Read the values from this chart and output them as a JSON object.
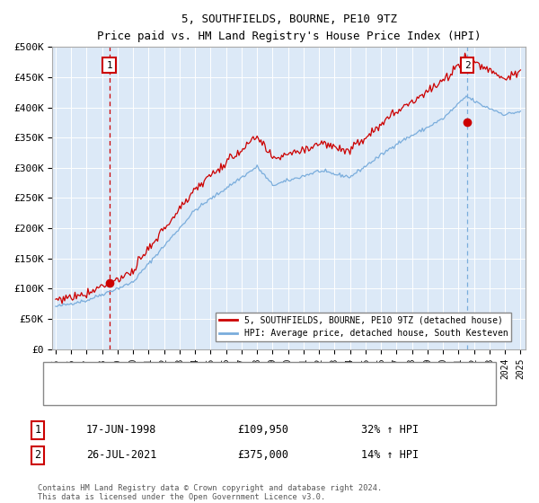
{
  "title": "5, SOUTHFIELDS, BOURNE, PE10 9TZ",
  "subtitle": "Price paid vs. HM Land Registry's House Price Index (HPI)",
  "bg_color": "#dce9f7",
  "line1_color": "#cc0000",
  "line2_color": "#7aaddc",
  "vline1_color": "#cc0000",
  "vline2_color": "#7aaddc",
  "ylim": [
    0,
    500000
  ],
  "yticks": [
    0,
    50000,
    100000,
    150000,
    200000,
    250000,
    300000,
    350000,
    400000,
    450000,
    500000
  ],
  "ytick_labels": [
    "£0",
    "£50K",
    "£100K",
    "£150K",
    "£200K",
    "£250K",
    "£300K",
    "£350K",
    "£400K",
    "£450K",
    "£500K"
  ],
  "xmin_year": 1995,
  "xmax_year": 2025,
  "xticks": [
    1995,
    1996,
    1997,
    1998,
    1999,
    2000,
    2001,
    2002,
    2003,
    2004,
    2005,
    2006,
    2007,
    2008,
    2009,
    2010,
    2011,
    2012,
    2013,
    2014,
    2015,
    2016,
    2017,
    2018,
    2019,
    2020,
    2021,
    2022,
    2023,
    2024,
    2025
  ],
  "purchase1_year": 1998.46,
  "purchase1_value": 109950,
  "purchase2_year": 2021.56,
  "purchase2_value": 375000,
  "legend_line1": "5, SOUTHFIELDS, BOURNE, PE10 9TZ (detached house)",
  "legend_line2": "HPI: Average price, detached house, South Kesteven",
  "note1_date": "17-JUN-1998",
  "note1_price": "£109,950",
  "note1_hpi": "32% ↑ HPI",
  "note2_date": "26-JUL-2021",
  "note2_price": "£375,000",
  "note2_hpi": "14% ↑ HPI",
  "footer": "Contains HM Land Registry data © Crown copyright and database right 2024.\nThis data is licensed under the Open Government Licence v3.0."
}
